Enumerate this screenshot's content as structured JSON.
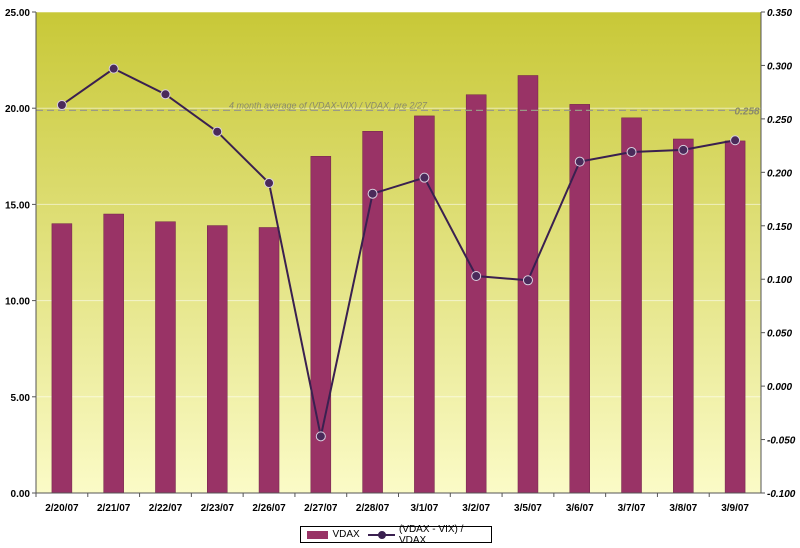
{
  "chart_data": {
    "type": "bar",
    "categories": [
      "2/20/07",
      "2/21/07",
      "2/22/07",
      "2/23/07",
      "2/26/07",
      "2/27/07",
      "2/28/07",
      "3/1/07",
      "3/2/07",
      "3/5/07",
      "3/6/07",
      "3/7/07",
      "3/8/07",
      "3/9/07"
    ],
    "series": [
      {
        "name": "VDAX",
        "type": "bar",
        "axis": "left",
        "values": [
          14.0,
          14.5,
          14.1,
          13.9,
          13.8,
          17.5,
          18.8,
          19.6,
          20.7,
          21.7,
          20.2,
          19.5,
          18.4,
          18.3
        ]
      },
      {
        "name": "(VDAX - VIX) / VDAX",
        "type": "line",
        "axis": "right",
        "values": [
          0.263,
          0.297,
          0.273,
          0.238,
          0.19,
          -0.047,
          0.18,
          0.195,
          0.103,
          0.099,
          0.21,
          0.219,
          0.221,
          0.23
        ]
      }
    ],
    "y_left": {
      "ticks": [
        "0.00",
        "5.00",
        "10.00",
        "15.00",
        "20.00",
        "25.00"
      ],
      "ylim": [
        0,
        25
      ]
    },
    "y_right": {
      "ticks": [
        "-0.100",
        "-0.050",
        "0.000",
        "0.050",
        "0.100",
        "0.150",
        "0.200",
        "0.250",
        "0.300",
        "0.350"
      ],
      "ylim": [
        -0.1,
        0.35
      ]
    },
    "reference_line": {
      "label": "4 month average of (VDAX-VIX) / VDAX, pre 2/27",
      "value": 0.258,
      "value_label": "0.258"
    },
    "grid": true,
    "legend": "bottom-center",
    "colors": {
      "bar": "#993366",
      "line": "#3a2050",
      "marker": "#4a2a5a",
      "plot_top": "#c8c837",
      "plot_bottom": "#fbfbc7",
      "ref_line": "#9a9a86"
    }
  }
}
